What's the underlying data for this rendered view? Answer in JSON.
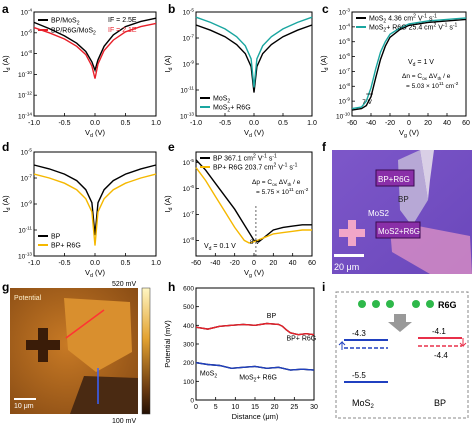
{
  "figure": {
    "panels": {
      "a": {
        "label": "a"
      },
      "b": {
        "label": "b"
      },
      "c": {
        "label": "c"
      },
      "d": {
        "label": "d"
      },
      "e": {
        "label": "e"
      },
      "f": {
        "label": "f"
      },
      "g": {
        "label": "g"
      },
      "h": {
        "label": "h"
      },
      "i": {
        "label": "i"
      }
    },
    "colors": {
      "black": "#000000",
      "red": "#e8202a",
      "teal": "#1aa6a0",
      "yellow": "#f5b800",
      "blue": "#2040c0",
      "orange": "#f07a3a"
    }
  },
  "chart_data": [
    {
      "id": "a",
      "type": "line",
      "xlabel": "V_d (V)",
      "ylabel": "I_d (A)",
      "xlim": [
        -1.0,
        1.0
      ],
      "xticks": [
        "-1.0",
        "-0.5",
        "0.0",
        "0.5",
        "1.0"
      ],
      "ylim_log": [
        -14,
        -4
      ],
      "yticks": [
        "10^-4",
        "10^-6",
        "10^-8",
        "10^-10",
        "10^-12",
        "10^-14"
      ],
      "series": [
        {
          "name": "BP/MoS2",
          "annotation": "IF = 2.5E",
          "x": [
            -1.0,
            -0.75,
            -0.5,
            -0.3,
            -0.15,
            -0.05,
            0.0,
            0.05,
            0.15,
            0.3,
            0.5,
            0.75,
            1.0
          ],
          "logy": [
            -5.0,
            -5.6,
            -6.3,
            -7.0,
            -7.8,
            -8.8,
            -9.6,
            -8.6,
            -7.3,
            -6.2,
            -5.4,
            -4.9,
            -4.6
          ]
        },
        {
          "name": "BP/R6G/MoS2",
          "annotation": "IF = 2.1E",
          "x": [
            -1.0,
            -0.75,
            -0.5,
            -0.3,
            -0.15,
            -0.05,
            0.0,
            0.05,
            0.15,
            0.3,
            0.5,
            0.75,
            1.0
          ],
          "logy": [
            -5.5,
            -6.0,
            -6.6,
            -7.3,
            -8.1,
            -9.2,
            -10.4,
            -9.0,
            -7.7,
            -6.7,
            -5.9,
            -5.4,
            -5.1
          ]
        }
      ]
    },
    {
      "id": "b",
      "type": "line",
      "xlabel": "V_d (V)",
      "ylabel": "I_d (A)",
      "xlim": [
        -1.0,
        1.0
      ],
      "xticks": [
        "-1.0",
        "-0.5",
        "0.0",
        "0.5",
        "1.0"
      ],
      "ylim_log": [
        -13,
        -5
      ],
      "yticks": [
        "10^-5",
        "10^-7",
        "10^-9",
        "10^-11",
        "10^-13"
      ],
      "series": [
        {
          "name": "MoS2",
          "x": [
            -1.0,
            -0.75,
            -0.5,
            -0.3,
            -0.15,
            -0.05,
            0.0,
            0.05,
            0.15,
            0.3,
            0.5,
            0.75,
            1.0
          ],
          "logy": [
            -6.0,
            -6.4,
            -6.9,
            -7.5,
            -8.2,
            -9.2,
            -11.2,
            -9.2,
            -8.2,
            -7.5,
            -6.9,
            -6.4,
            -6.0
          ]
        },
        {
          "name": "MoS2+ R6G",
          "x": [
            -1.0,
            -0.75,
            -0.5,
            -0.3,
            -0.15,
            -0.05,
            0.0,
            0.05,
            0.15,
            0.3,
            0.5,
            0.75,
            1.0
          ],
          "logy": [
            -5.4,
            -5.8,
            -6.3,
            -6.9,
            -7.6,
            -8.6,
            -10.8,
            -8.6,
            -7.6,
            -6.9,
            -6.3,
            -5.8,
            -5.4
          ]
        }
      ]
    },
    {
      "id": "c",
      "type": "line",
      "xlabel": "V_g (V)",
      "ylabel": "I_d (A)",
      "xlim": [
        -60,
        60
      ],
      "xticks": [
        "-60",
        "-40",
        "-20",
        "0",
        "20",
        "40",
        "60"
      ],
      "ylim_log": [
        -10,
        -3
      ],
      "yticks": [
        "10^-3",
        "10^-4",
        "10^-5",
        "10^-6",
        "10^-7",
        "10^-8",
        "10^-9",
        "10^-10"
      ],
      "annotations": [
        "V_d = 1 V",
        "Δn = C_ox ΔV_th / e",
        "= 5.03 × 10^11 cm^-2",
        "7 V"
      ],
      "series": [
        {
          "name": "MoS2",
          "mobility": "4.36 cm^2 V^-1 s^-1",
          "x": [
            -60,
            -50,
            -45,
            -40,
            -35,
            -30,
            -25,
            -20,
            -10,
            0,
            20,
            40,
            60
          ],
          "logy": [
            -9.6,
            -9.5,
            -9.3,
            -8.7,
            -7.4,
            -6.2,
            -5.3,
            -4.7,
            -4.2,
            -3.9,
            -3.7,
            -3.6,
            -3.5
          ]
        },
        {
          "name": "MoS2+ R6G",
          "mobility": "25.4 cm^2 V^-1 s^-1",
          "x": [
            -60,
            -50,
            -45,
            -40,
            -35,
            -30,
            -25,
            -20,
            -10,
            0,
            20,
            40,
            60
          ],
          "logy": [
            -9.5,
            -9.4,
            -9.0,
            -8.1,
            -6.8,
            -5.7,
            -5.0,
            -4.5,
            -4.1,
            -3.8,
            -3.6,
            -3.5,
            -3.4
          ]
        }
      ]
    },
    {
      "id": "d",
      "type": "line",
      "xlabel": "V_d (V)",
      "ylabel": "I_d (A)",
      "xlim": [
        -1.0,
        1.0
      ],
      "xticks": [
        "-1.0",
        "-0.5",
        "0.0",
        "0.5",
        "1.0"
      ],
      "ylim_log": [
        -13,
        -5
      ],
      "yticks": [
        "10^-5",
        "10^-7",
        "10^-9",
        "10^-11",
        "10^-13"
      ],
      "series": [
        {
          "name": "BP",
          "x": [
            -1.0,
            -0.75,
            -0.5,
            -0.3,
            -0.15,
            -0.05,
            0.0,
            0.05,
            0.15,
            0.3,
            0.5,
            0.75,
            1.0
          ],
          "logy": [
            -6.0,
            -6.3,
            -6.7,
            -7.2,
            -7.9,
            -8.9,
            -11.4,
            -8.9,
            -7.9,
            -7.2,
            -6.7,
            -6.3,
            -6.0
          ]
        },
        {
          "name": "BP+ R6G",
          "x": [
            -1.0,
            -0.75,
            -0.5,
            -0.3,
            -0.15,
            -0.05,
            0.0,
            0.05,
            0.15,
            0.3,
            0.5,
            0.75,
            1.0
          ],
          "logy": [
            -6.7,
            -7.0,
            -7.4,
            -7.9,
            -8.6,
            -9.6,
            -12.2,
            -9.6,
            -8.6,
            -7.9,
            -7.4,
            -7.0,
            -6.7
          ]
        }
      ]
    },
    {
      "id": "e",
      "type": "line",
      "xlabel": "V_g (V)",
      "ylabel": "I_d (A)",
      "xlim": [
        -60,
        60
      ],
      "xticks": [
        "-60",
        "-40",
        "-20",
        "0",
        "20",
        "40",
        "60"
      ],
      "ylim_log": [
        -8.6,
        -4.6
      ],
      "yticks": [
        "10^-5",
        "10^-6",
        "10^-7",
        "10^-8"
      ],
      "annotations": [
        "V_d = 0.1 V",
        "Δp = C_ox ΔV_th / e",
        "= 5.75 × 10^11 cm^-2",
        "8 V"
      ],
      "series": [
        {
          "name": "BP",
          "mobility": "367.1 cm^2 V^-1 s^-1",
          "x": [
            -60,
            -50,
            -40,
            -30,
            -20,
            -10,
            0,
            5,
            10,
            20,
            30,
            40,
            50,
            60
          ],
          "logy": [
            -4.9,
            -5.3,
            -5.8,
            -6.3,
            -6.8,
            -7.4,
            -8.0,
            -8.05,
            -7.9,
            -7.6,
            -7.5,
            -7.45,
            -7.4,
            -7.4
          ]
        },
        {
          "name": "BP+ R6G",
          "mobility": "203.7 cm^2 V^-1 s^-1",
          "x": [
            -60,
            -50,
            -40,
            -30,
            -20,
            -10,
            -5,
            0,
            10,
            20,
            30,
            40,
            50,
            60
          ],
          "logy": [
            -5.2,
            -5.7,
            -6.3,
            -6.9,
            -7.5,
            -8.0,
            -8.1,
            -8.05,
            -7.9,
            -7.75,
            -7.7,
            -7.65,
            -7.6,
            -7.6
          ]
        }
      ]
    },
    {
      "id": "h",
      "type": "line",
      "xlabel": "Distance (μm)",
      "ylabel": "Potential (mV)",
      "xlim": [
        0,
        30
      ],
      "xticks": [
        "0",
        "5",
        "10",
        "15",
        "20",
        "25",
        "30"
      ],
      "ylim": [
        0,
        600
      ],
      "yticks": [
        "0",
        "100",
        "200",
        "300",
        "400",
        "500",
        "600"
      ],
      "series": [
        {
          "name": "BP",
          "x": [
            0,
            3,
            6,
            9,
            12,
            15,
            18,
            21,
            22,
            23,
            24,
            26,
            28,
            30
          ],
          "y": [
            390,
            380,
            395,
            400,
            405,
            400,
            410,
            405,
            395,
            375,
            360,
            350,
            355,
            350
          ]
        },
        {
          "name": "BP+ R6G",
          "x": [],
          "y": []
        },
        {
          "name": "MoS2",
          "x": [
            0,
            3,
            6,
            9,
            12,
            15,
            18,
            21,
            24,
            27,
            30
          ],
          "y": [
            200,
            190,
            185,
            170,
            175,
            180,
            170,
            175,
            160,
            165,
            160
          ]
        },
        {
          "name": "MoS2+ R6G",
          "x": [],
          "y": []
        }
      ]
    }
  ],
  "panel_f": {
    "labels": [
      "BP+R6G",
      "BP",
      "MoS2",
      "MoS2+R6G"
    ],
    "scalebar": "20 μm"
  },
  "panel_g": {
    "title": "Potential",
    "scale_max": "520 mV",
    "scale_min": "100 mV",
    "scalebar": "10 μm"
  },
  "panel_i": {
    "molecule": "R6G",
    "levels": {
      "mos2_left": "-4.3",
      "bp_right": "-4.1",
      "bp_right_low": "-4.4",
      "mos2_bottom": "-5.5"
    },
    "materials": [
      "MoS2",
      "BP"
    ]
  }
}
